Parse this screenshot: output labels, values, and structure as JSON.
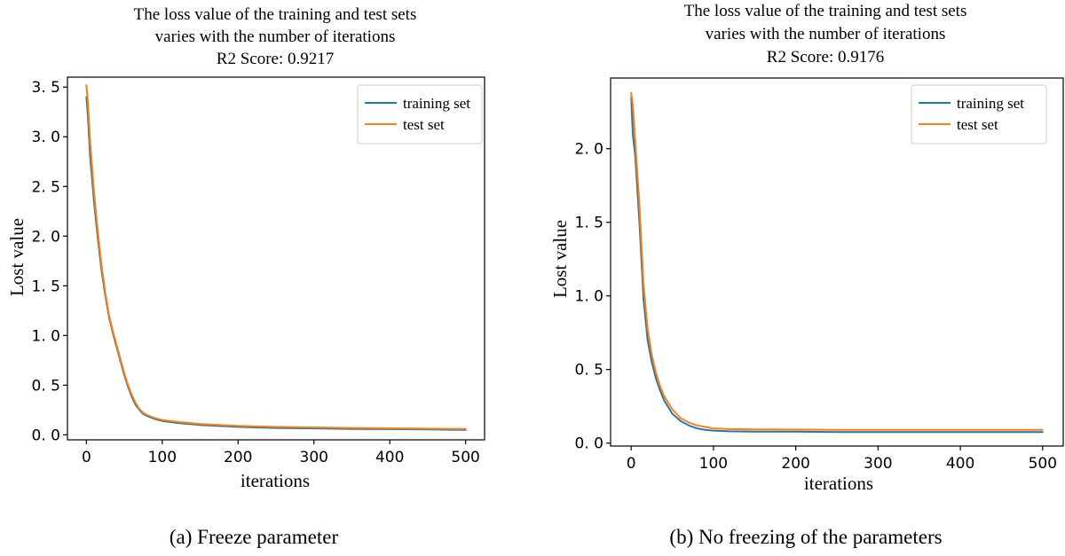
{
  "colors": {
    "training": "#1f77b4",
    "test": "#ff7f0e",
    "axis": "#000000",
    "legend_border": "#cccccc"
  },
  "chart_data": [
    {
      "type": "line",
      "title": [
        "The loss value of the training and test sets",
        "varies with the number of iterations",
        "R2 Score: 0.9217"
      ],
      "caption": "(a) Freeze parameter",
      "xlabel": "iterations",
      "ylabel": "Lost value",
      "xlim": [
        -25,
        525
      ],
      "ylim": [
        -0.05,
        3.6
      ],
      "xticks": [
        0,
        100,
        200,
        300,
        400,
        500
      ],
      "xtick_labels": [
        "0",
        "100",
        "200",
        "300",
        "400",
        "500"
      ],
      "yticks": [
        0,
        0.5,
        1.0,
        1.5,
        2.0,
        2.5,
        3.0,
        3.5
      ],
      "ytick_labels": [
        "0. 0",
        "0. 5",
        "1. 0",
        "1. 5",
        "2. 0",
        "2. 5",
        "3. 0",
        "3. 5"
      ],
      "legend": [
        "training set",
        "test set"
      ],
      "legend_position": "top-right",
      "series": [
        {
          "name": "training set",
          "x": [
            0,
            2,
            5,
            10,
            15,
            20,
            25,
            30,
            35,
            40,
            45,
            50,
            55,
            60,
            65,
            70,
            75,
            80,
            90,
            100,
            120,
            150,
            200,
            250,
            300,
            350,
            400,
            450,
            500
          ],
          "y": [
            3.4,
            3.2,
            2.8,
            2.35,
            1.98,
            1.65,
            1.4,
            1.18,
            1.02,
            0.88,
            0.74,
            0.6,
            0.48,
            0.38,
            0.3,
            0.25,
            0.21,
            0.19,
            0.16,
            0.14,
            0.12,
            0.1,
            0.08,
            0.07,
            0.065,
            0.06,
            0.058,
            0.055,
            0.05
          ]
        },
        {
          "name": "test set",
          "x": [
            0,
            2,
            5,
            10,
            15,
            20,
            25,
            30,
            35,
            40,
            45,
            50,
            55,
            60,
            65,
            70,
            75,
            80,
            90,
            100,
            120,
            150,
            200,
            250,
            300,
            350,
            400,
            450,
            500
          ],
          "y": [
            3.52,
            3.35,
            2.95,
            2.45,
            2.05,
            1.7,
            1.43,
            1.2,
            1.04,
            0.9,
            0.76,
            0.62,
            0.5,
            0.4,
            0.32,
            0.26,
            0.22,
            0.2,
            0.17,
            0.15,
            0.13,
            0.11,
            0.09,
            0.08,
            0.075,
            0.07,
            0.066,
            0.062,
            0.06
          ]
        }
      ]
    },
    {
      "type": "line",
      "title": [
        "The loss value of the training and test sets",
        "varies with the number of iterations",
        "R2 Score: 0.9176"
      ],
      "caption": "(b) No freezing of the parameters",
      "xlabel": "iterations",
      "ylabel": "Lost value",
      "xlim": [
        -25,
        525
      ],
      "ylim": [
        -0.02,
        2.48
      ],
      "xticks": [
        0,
        100,
        200,
        300,
        400,
        500
      ],
      "xtick_labels": [
        "0",
        "100",
        "200",
        "300",
        "400",
        "500"
      ],
      "yticks": [
        0,
        0.5,
        1.0,
        1.5,
        2.0
      ],
      "ytick_labels": [
        "0. 0",
        "0. 5",
        "1. 0",
        "1. 5",
        "2. 0"
      ],
      "legend": [
        "training set",
        "test set"
      ],
      "legend_position": "top-right",
      "series": [
        {
          "name": "training set",
          "x": [
            0,
            2,
            5,
            10,
            15,
            20,
            25,
            30,
            35,
            40,
            50,
            60,
            70,
            80,
            90,
            100,
            120,
            150,
            200,
            250,
            300,
            350,
            400,
            450,
            500
          ],
          "y": [
            2.35,
            2.1,
            1.95,
            1.5,
            0.98,
            0.7,
            0.55,
            0.44,
            0.36,
            0.29,
            0.2,
            0.15,
            0.12,
            0.1,
            0.09,
            0.085,
            0.08,
            0.078,
            0.078,
            0.075,
            0.075,
            0.075,
            0.075,
            0.075,
            0.075
          ]
        },
        {
          "name": "test set",
          "x": [
            0,
            2,
            5,
            10,
            15,
            20,
            25,
            30,
            35,
            40,
            50,
            60,
            70,
            80,
            90,
            100,
            120,
            150,
            200,
            250,
            300,
            350,
            400,
            450,
            500
          ],
          "y": [
            2.38,
            2.3,
            2.05,
            1.62,
            1.08,
            0.78,
            0.6,
            0.48,
            0.39,
            0.32,
            0.23,
            0.17,
            0.14,
            0.12,
            0.11,
            0.1,
            0.095,
            0.093,
            0.092,
            0.09,
            0.09,
            0.09,
            0.09,
            0.09,
            0.09
          ]
        }
      ]
    }
  ]
}
